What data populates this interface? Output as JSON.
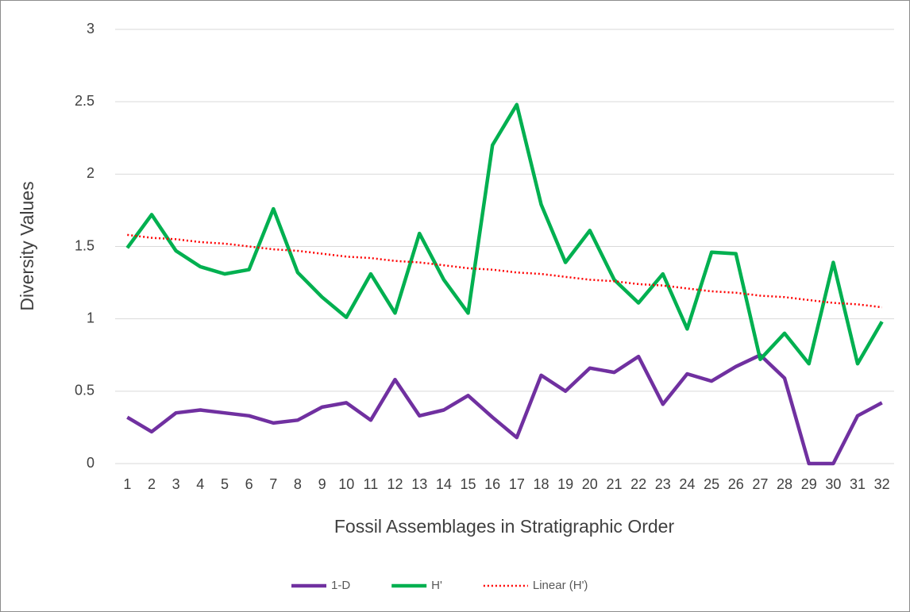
{
  "chart_data": {
    "type": "line",
    "x_label": "Fossil Assemblages in Stratigraphic Order",
    "y_label": "Diversity Values",
    "categories": [
      "1",
      "2",
      "3",
      "4",
      "5",
      "6",
      "7",
      "8",
      "9",
      "10",
      "11",
      "12",
      "13",
      "14",
      "15",
      "16",
      "17",
      "18",
      "19",
      "20",
      "21",
      "22",
      "23",
      "24",
      "25",
      "26",
      "27",
      "28",
      "29",
      "30",
      "31",
      "32"
    ],
    "series": [
      {
        "name": "1-D",
        "color": "#7030a0",
        "values": [
          0.32,
          0.22,
          0.35,
          0.37,
          0.35,
          0.33,
          0.28,
          0.3,
          0.39,
          0.42,
          0.3,
          0.58,
          0.33,
          0.37,
          0.47,
          0.32,
          0.18,
          0.61,
          0.5,
          0.66,
          0.63,
          0.74,
          0.41,
          0.62,
          0.57,
          0.67,
          0.75,
          0.59,
          0,
          0,
          0.33,
          0.42
        ]
      },
      {
        "name": "H'",
        "color": "#00b050",
        "values": [
          1.49,
          1.72,
          1.47,
          1.36,
          1.31,
          1.34,
          1.76,
          1.32,
          1.15,
          1.01,
          1.31,
          1.04,
          1.59,
          1.27,
          1.04,
          2.2,
          2.48,
          1.79,
          1.39,
          1.61,
          1.27,
          1.11,
          1.31,
          0.93,
          1.46,
          1.45,
          0.72,
          0.9,
          0.69,
          1.39,
          0.69,
          0.98
        ]
      },
      {
        "name": "Linear (H')",
        "color": "#ff0000",
        "dashed": true,
        "values": [
          1.58,
          1.56,
          1.55,
          1.53,
          1.52,
          1.5,
          1.48,
          1.47,
          1.45,
          1.43,
          1.42,
          1.4,
          1.39,
          1.37,
          1.35,
          1.34,
          1.32,
          1.31,
          1.29,
          1.27,
          1.26,
          1.24,
          1.23,
          1.21,
          1.19,
          1.18,
          1.16,
          1.15,
          1.13,
          1.11,
          1.1,
          1.08
        ]
      }
    ],
    "ylim": [
      0,
      3
    ],
    "yticks": [
      0,
      0.5,
      1,
      1.5,
      2,
      2.5,
      3
    ],
    "grid": true,
    "legend": "bottom"
  }
}
